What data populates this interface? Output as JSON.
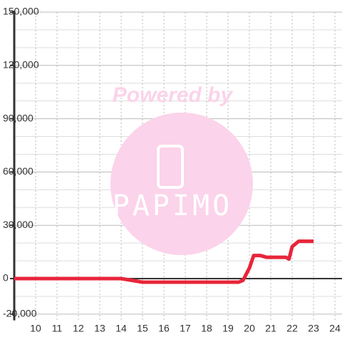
{
  "chart_data": {
    "type": "line",
    "x": [
      9,
      14,
      14.5,
      15,
      19.5,
      19.7,
      20,
      20.2,
      20.5,
      20.8,
      21.7,
      21.85,
      22,
      22.3,
      23
    ],
    "series": [
      {
        "color": "#e8253a",
        "values": [
          0,
          0,
          -1000,
          -2000,
          -2000,
          -1000,
          6000,
          13000,
          13000,
          12000,
          12000,
          11000,
          18000,
          21000,
          21000
        ]
      }
    ],
    "xlim": [
      9,
      24.33
    ],
    "xticks": [
      10,
      11,
      12,
      13,
      14,
      15,
      16,
      17,
      18,
      19,
      20,
      21,
      22,
      23,
      24
    ],
    "ylim": [
      -23500,
      150000
    ],
    "yticks": [
      {
        "value": -20000,
        "label": "-20,000"
      },
      0,
      {
        "value": 30000,
        "label": "30,000"
      },
      {
        "value": 60000,
        "label": "60,000"
      },
      {
        "value": 90000,
        "label": "90,000"
      },
      {
        "value": 120000,
        "label": "120,000"
      },
      {
        "value": 150000,
        "label": "150,000"
      }
    ],
    "minor_yticks": [
      -10000,
      10000,
      20000,
      40000,
      50000,
      70000,
      80000,
      100000,
      110000,
      130000,
      140000
    ],
    "grid": true,
    "watermark": {
      "top": "Powered by",
      "brand": "PAPIMO"
    }
  }
}
